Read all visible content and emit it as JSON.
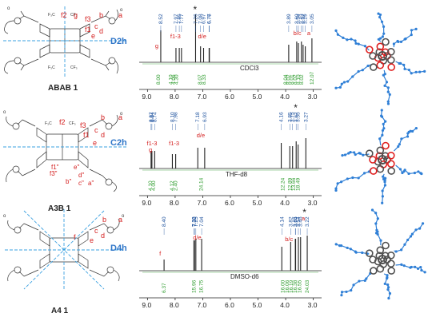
{
  "colors": {
    "blue_label": "#1a4f9c",
    "red_label": "#d42020",
    "green_label": "#2a9a2a",
    "axis_blue": "#2f76c8",
    "sym_blue": "#3aa0e0",
    "dark": "#222222",
    "mol_gray": "#505050",
    "mol_red": "#e02020",
    "mol_blue": "#2f7fd6"
  },
  "panels": [
    {
      "id": "abab",
      "compound_label": "ABAB 1",
      "symmetry": "D2h",
      "solvent": "CDCl3",
      "chem_labels": [
        "f2",
        "g",
        "f3",
        "b",
        "a",
        "f1",
        "c",
        "d",
        "e"
      ],
      "peaks_top": [
        "8.52",
        "7.97",
        "7.85",
        "7.77",
        "7.26",
        "7.08",
        "6.97",
        "6.77",
        "6.76",
        "3.89",
        "3.60",
        "3.54",
        "3.43",
        "3.37",
        "3.29",
        "3.05"
      ],
      "assignments": [
        "g",
        "f1-3",
        "d/e",
        "b/c",
        "a"
      ],
      "star": "*",
      "integrals": [
        "8.00",
        "4.10",
        "4.06",
        "4.30",
        "8.07",
        "8.33",
        "8.04",
        "8.02",
        "8.01",
        "8.02",
        "8.10",
        "8.02",
        "12.07"
      ]
    },
    {
      "id": "a3b",
      "compound_label": "A3B 1",
      "symmetry": "C2h",
      "solvent": "THF-d8",
      "chem_labels": [
        "f2",
        "f3",
        "b",
        "a",
        "f1",
        "c",
        "d",
        "e",
        "f1\"",
        "e\"",
        "f3\"",
        "d\"",
        "b\"",
        "c\"",
        "a\""
      ],
      "peaks_top": [
        "8.87",
        "8.84",
        "8.74",
        "8.10",
        "7.98",
        "7.18",
        "6.93",
        "4.16",
        "3.85",
        "3.75",
        "3.62",
        "3.55",
        "3.27"
      ],
      "assignments": [
        "f1-3",
        "g",
        "f1-3",
        "d/e"
      ],
      "star": "*",
      "integrals": [
        "4.10",
        "4.00",
        "4.12",
        "2.40",
        "24.14",
        "12.24",
        "12.89",
        "13.66",
        "18.49"
      ]
    },
    {
      "id": "a4",
      "compound_label": "A4 1",
      "symmetry": "D4h",
      "solvent": "DMSO-d6",
      "chem_labels": [
        "b",
        "a",
        "c",
        "d",
        "e",
        "f"
      ],
      "peaks_top": [
        "8.40",
        "7.32",
        "7.30",
        "7.25",
        "7.04",
        "4.14",
        "3.82",
        "3.65",
        "3.64",
        "3.54",
        "3.46",
        "3.22"
      ],
      "assignments": [
        "f",
        "d/e",
        "b/c",
        "a"
      ],
      "star": "*",
      "integrals": [
        "6.37",
        "15.96",
        "16.75",
        "16.00",
        "16.06",
        "16.19",
        "16.38",
        "16.55",
        "24.03"
      ]
    }
  ],
  "x_axis_ticks": [
    "9.0",
    "8.0",
    "7.0",
    "6.0",
    "5.0",
    "4.0",
    "3.0"
  ]
}
